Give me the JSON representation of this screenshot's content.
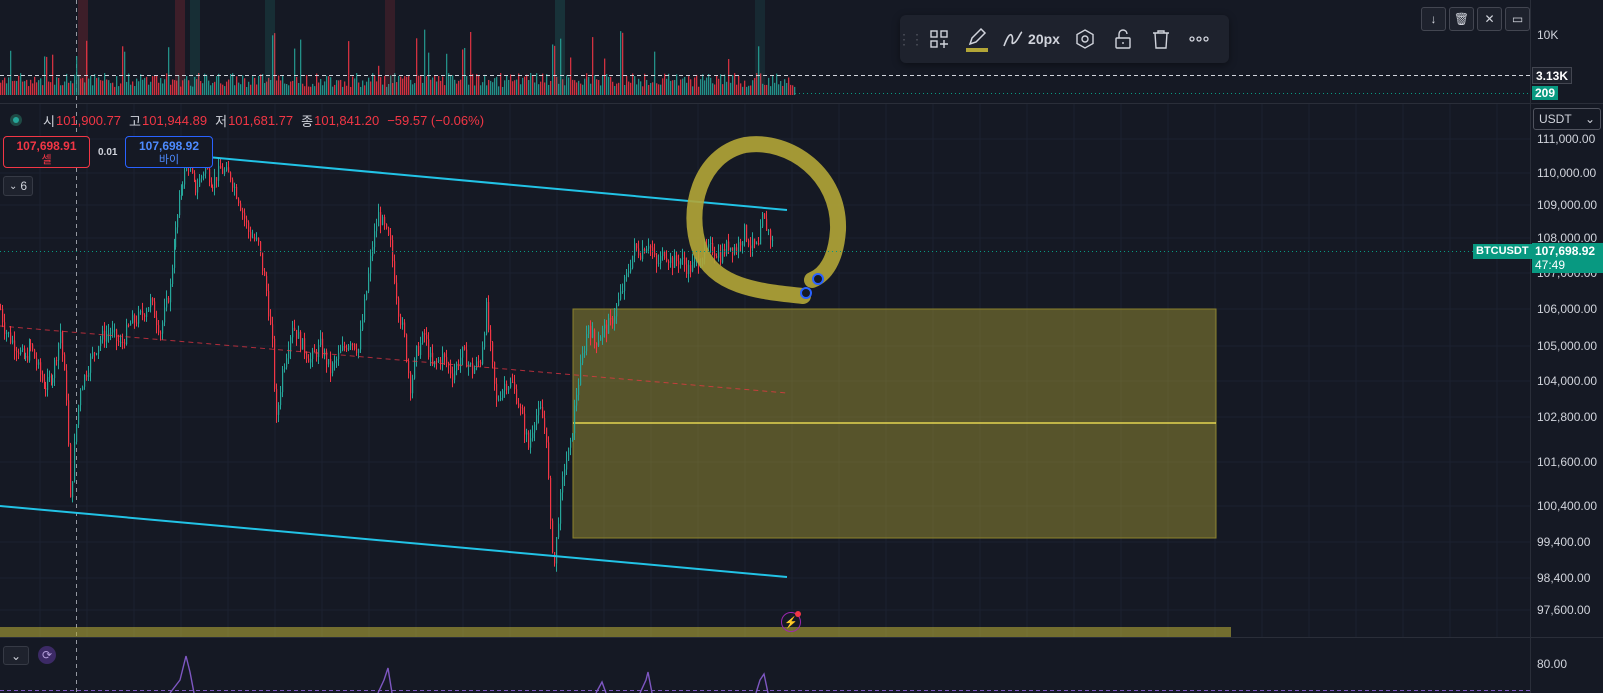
{
  "symbol": "BTCUSDT",
  "colors": {
    "background": "#151924",
    "up": "#26a69a",
    "down": "#f23645",
    "channel": "#22c3e6",
    "zone": "#b3a637",
    "highlight_line": "#ffee58",
    "last_price": "#089981"
  },
  "toolbar": {
    "grip_icon": "drag-grip-icon",
    "template_icon": "add-template-icon",
    "pencil_icon": "pencil-icon",
    "stroke_icon": "line-style-icon",
    "width_label": "20px",
    "settings_icon": "settings-hexagon-icon",
    "lock_icon": "unlock-icon",
    "delete_icon": "trash-icon",
    "more_icon": "more-dots-icon"
  },
  "window_buttons": [
    "down-arrow-icon",
    "trash-icon",
    "collapse-icon",
    "expand-icon"
  ],
  "volume_pane": {
    "axis_top": "10K",
    "level_label": "3.13K",
    "current_label": "209"
  },
  "ohlc": {
    "open_label": "시",
    "open_value": "101,900.77",
    "high_label": "고",
    "high_value": "101,944.89",
    "low_label": "저",
    "low_value": "101,681.77",
    "close_label": "종",
    "close_value": "101,841.20",
    "change": "−59.57 (−0.06%)"
  },
  "trade_panel": {
    "sell_price": "107,698.91",
    "sell_label": "셀",
    "spread": "0.01",
    "buy_price": "107,698.92",
    "buy_label": "바이"
  },
  "indicators_toggle": "6",
  "currency_select": "USDT",
  "price_axis": {
    "ticks": [
      "111,000.00",
      "110,000.00",
      "109,000.00",
      "108,000.00",
      "107,000.00",
      "106,000.00",
      "105,000.00",
      "104,000.00",
      "102,800.00",
      "101,600.00",
      "100,400.00",
      "99,400.00",
      "98,400.00",
      "97,600.00"
    ],
    "last_price": "107,698.92",
    "countdown": "47:49",
    "symbol_tag": "BTCUSDT"
  },
  "lower_pane": {
    "axis_label": "80.00",
    "collapse_icon": "chevron-down-icon",
    "sync_icon": "refresh-icon"
  },
  "alert_icon": "lightning-alert-icon",
  "chart_data": {
    "type": "candlestick",
    "ylim": [
      97300,
      111500
    ],
    "last_price": 107698.92,
    "description_points": [
      [
        0,
        106000
      ],
      [
        4,
        105500
      ],
      [
        10,
        105200
      ],
      [
        18,
        104900
      ],
      [
        25,
        104600
      ],
      [
        30,
        105000
      ],
      [
        36,
        104500
      ],
      [
        45,
        103800
      ],
      [
        52,
        104200
      ],
      [
        60,
        105400
      ],
      [
        66,
        103500
      ],
      [
        70,
        100500
      ],
      [
        74,
        102000
      ],
      [
        80,
        103800
      ],
      [
        90,
        104600
      ],
      [
        100,
        105200
      ],
      [
        110,
        105400
      ],
      [
        120,
        105000
      ],
      [
        130,
        105600
      ],
      [
        140,
        105800
      ],
      [
        150,
        106200
      ],
      [
        160,
        105400
      ],
      [
        170,
        106600
      ],
      [
        175,
        108200
      ],
      [
        182,
        109800
      ],
      [
        188,
        110300
      ],
      [
        195,
        109500
      ],
      [
        205,
        110200
      ],
      [
        212,
        109700
      ],
      [
        220,
        110100
      ],
      [
        230,
        109900
      ],
      [
        238,
        109200
      ],
      [
        248,
        108200
      ],
      [
        258,
        107800
      ],
      [
        266,
        106500
      ],
      [
        272,
        105000
      ],
      [
        276,
        102700
      ],
      [
        282,
        104300
      ],
      [
        292,
        105600
      ],
      [
        300,
        105100
      ],
      [
        310,
        104600
      ],
      [
        320,
        105000
      ],
      [
        330,
        104300
      ],
      [
        340,
        104800
      ],
      [
        350,
        105200
      ],
      [
        358,
        104900
      ],
      [
        366,
        106500
      ],
      [
        372,
        107800
      ],
      [
        378,
        108700
      ],
      [
        384,
        108300
      ],
      [
        390,
        107800
      ],
      [
        398,
        106000
      ],
      [
        404,
        105200
      ],
      [
        410,
        103800
      ],
      [
        416,
        104800
      ],
      [
        424,
        105300
      ],
      [
        432,
        104400
      ],
      [
        442,
        104700
      ],
      [
        452,
        104200
      ],
      [
        462,
        104800
      ],
      [
        472,
        104300
      ],
      [
        480,
        104600
      ],
      [
        486,
        106000
      ],
      [
        490,
        104900
      ],
      [
        496,
        103300
      ],
      [
        504,
        103900
      ],
      [
        512,
        103900
      ],
      [
        520,
        103000
      ],
      [
        528,
        102000
      ],
      [
        534,
        102800
      ],
      [
        540,
        103000
      ],
      [
        546,
        102300
      ],
      [
        550,
        99800
      ],
      [
        554,
        98800
      ],
      [
        558,
        100100
      ],
      [
        564,
        101500
      ],
      [
        570,
        102000
      ],
      [
        576,
        103600
      ],
      [
        582,
        104700
      ],
      [
        588,
        105600
      ],
      [
        594,
        105100
      ],
      [
        602,
        105400
      ],
      [
        610,
        105600
      ],
      [
        618,
        106200
      ],
      [
        626,
        106900
      ],
      [
        634,
        107700
      ],
      [
        640,
        107600
      ],
      [
        648,
        107900
      ],
      [
        656,
        107200
      ],
      [
        664,
        107600
      ],
      [
        672,
        107300
      ],
      [
        680,
        107400
      ],
      [
        688,
        107100
      ],
      [
        696,
        107300
      ],
      [
        704,
        107600
      ],
      [
        712,
        107700
      ],
      [
        720,
        107500
      ],
      [
        728,
        107800
      ],
      [
        736,
        107700
      ],
      [
        744,
        108200
      ],
      [
        750,
        107800
      ],
      [
        758,
        107700
      ],
      [
        762,
        108600
      ],
      [
        768,
        108200
      ],
      [
        774,
        107700
      ]
    ]
  }
}
